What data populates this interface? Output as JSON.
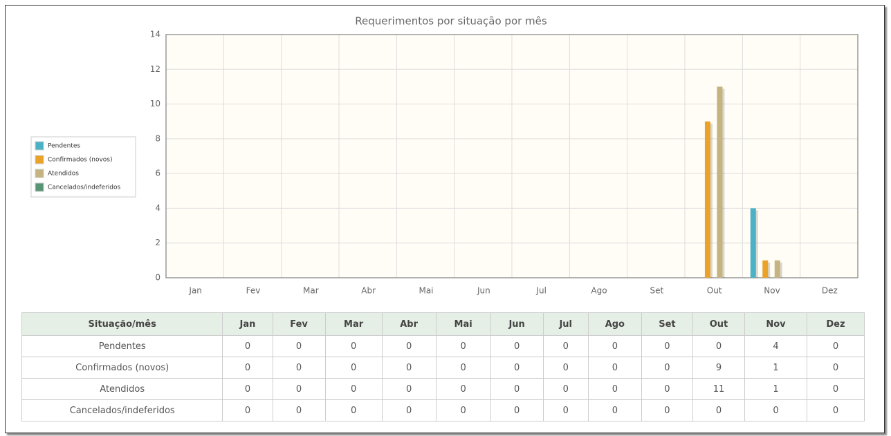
{
  "chart_data": {
    "type": "bar",
    "title": "Requerimentos por situação por mês",
    "categories": [
      "Jan",
      "Fev",
      "Mar",
      "Abr",
      "Mai",
      "Jun",
      "Jul",
      "Ago",
      "Set",
      "Out",
      "Nov",
      "Dez"
    ],
    "series": [
      {
        "name": "Pendentes",
        "color": "#4bb2c5",
        "values": [
          0,
          0,
          0,
          0,
          0,
          0,
          0,
          0,
          0,
          0,
          4,
          0
        ]
      },
      {
        "name": "Confirmados (novos)",
        "color": "#eaa228",
        "values": [
          0,
          0,
          0,
          0,
          0,
          0,
          0,
          0,
          0,
          9,
          1,
          0
        ]
      },
      {
        "name": "Atendidos",
        "color": "#c5b47f",
        "values": [
          0,
          0,
          0,
          0,
          0,
          0,
          0,
          0,
          0,
          11,
          1,
          0
        ]
      },
      {
        "name": "Cancelados/indeferidos",
        "color": "#579575",
        "values": [
          0,
          0,
          0,
          0,
          0,
          0,
          0,
          0,
          0,
          0,
          0,
          0
        ]
      }
    ],
    "ylim": [
      0,
      14
    ],
    "yticks": [
      0,
      2,
      4,
      6,
      8,
      10,
      12,
      14
    ],
    "grid": true,
    "legend": "left"
  },
  "table": {
    "header": "Situação/mês"
  }
}
